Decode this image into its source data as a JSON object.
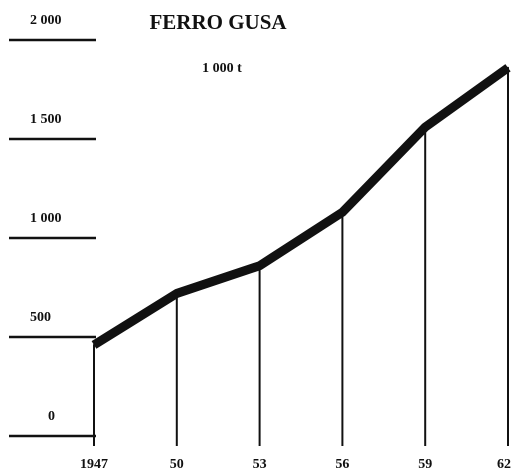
{
  "chart_data": {
    "type": "line",
    "title": "FERRO GUSA",
    "unit": "1 000 t",
    "x_tick_labels": [
      "1947",
      "50",
      "53",
      "56",
      "59",
      "62"
    ],
    "x": [
      1947,
      1950,
      1953,
      1956,
      1959,
      1962
    ],
    "y_tick_labels": [
      "0",
      "500",
      "1 000",
      "1 500",
      "2 000"
    ],
    "y_ticks": [
      0,
      500,
      1000,
      1500,
      2000
    ],
    "ylim": [
      0,
      2000
    ],
    "series": [
      {
        "values": [
          460,
          720,
          860,
          1130,
          1560,
          1860
        ]
      }
    ],
    "grid": false,
    "colors": {
      "line": "#111111",
      "axis": "#111111"
    }
  }
}
